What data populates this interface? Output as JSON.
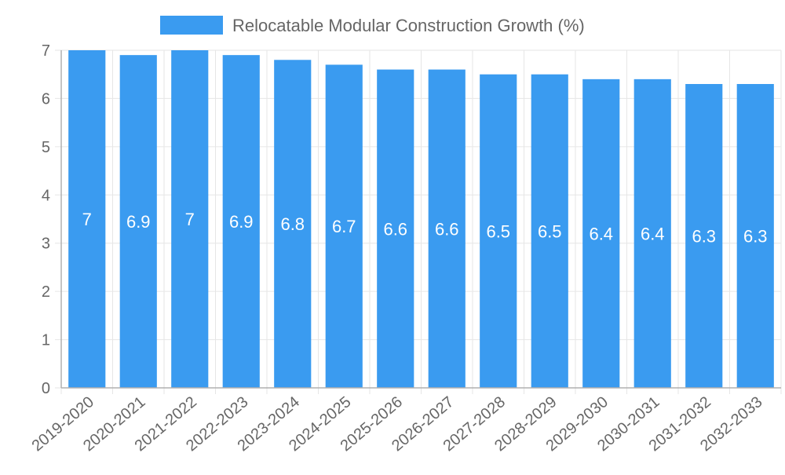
{
  "chart_data": {
    "type": "bar",
    "title": "",
    "xlabel": "",
    "ylabel": "",
    "ylim": [
      0,
      7
    ],
    "yticks": [
      0,
      1,
      2,
      3,
      4,
      5,
      6,
      7
    ],
    "grid": true,
    "legend_position": "top-center",
    "categories": [
      "2019-2020",
      "2020-2021",
      "2021-2022",
      "2022-2023",
      "2023-2024",
      "2024-2025",
      "2025-2026",
      "2026-2027",
      "2027-2028",
      "2028-2029",
      "2029-2030",
      "2030-2031",
      "2031-2032",
      "2032-2033"
    ],
    "series": [
      {
        "name": "Relocatable Modular Construction Growth (%)",
        "color": "#3a9bf0",
        "values": [
          7,
          6.9,
          7,
          6.9,
          6.8,
          6.7,
          6.6,
          6.6,
          6.5,
          6.5,
          6.4,
          6.4,
          6.3,
          6.3
        ]
      }
    ]
  }
}
